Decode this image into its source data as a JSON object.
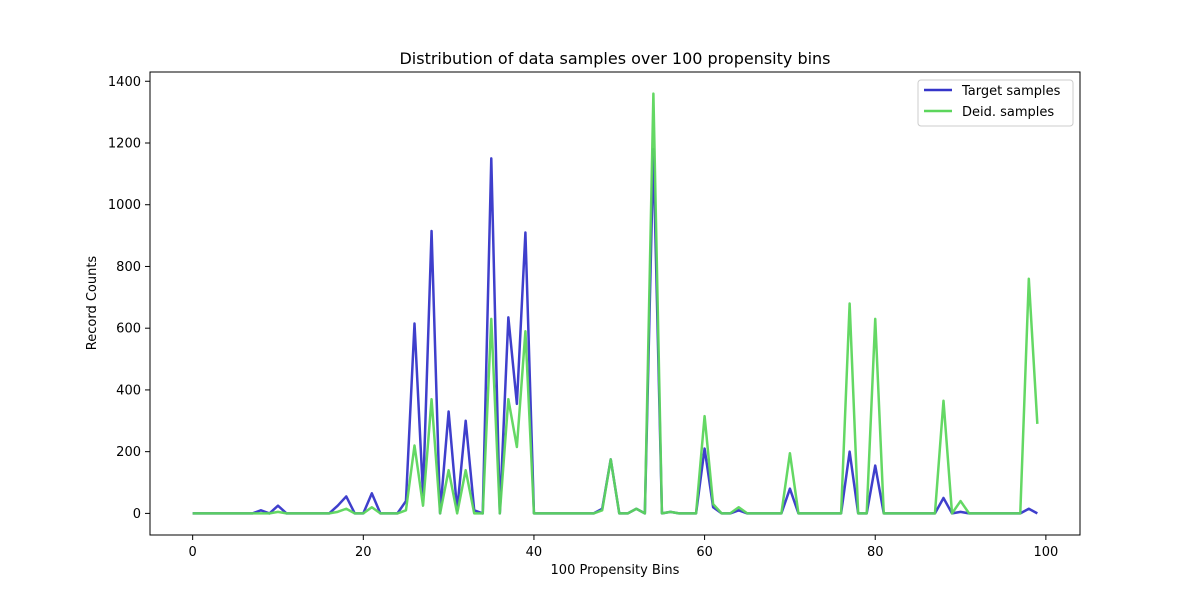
{
  "chart_data": {
    "type": "line",
    "title": "Distribution of data samples over 100 propensity bins",
    "xlabel": "100 Propensity Bins",
    "ylabel": "Record Counts",
    "xlim": [
      -5,
      104
    ],
    "ylim": [
      -70,
      1430
    ],
    "xticks": [
      0,
      20,
      40,
      60,
      80,
      100
    ],
    "yticks": [
      0,
      200,
      400,
      600,
      800,
      1000,
      1200,
      1400
    ],
    "grid": false,
    "legend_position": "top-right",
    "series": [
      {
        "name": "Target samples",
        "color": "#3535c9",
        "values": [
          0,
          0,
          0,
          0,
          0,
          0,
          0,
          0,
          10,
          0,
          25,
          0,
          0,
          0,
          0,
          0,
          0,
          25,
          55,
          0,
          0,
          65,
          0,
          0,
          0,
          40,
          615,
          60,
          915,
          0,
          330,
          10,
          300,
          10,
          0,
          1150,
          0,
          635,
          355,
          910,
          0,
          0,
          0,
          0,
          0,
          0,
          0,
          0,
          15,
          175,
          0,
          0,
          15,
          0,
          1180,
          0,
          5,
          0,
          0,
          0,
          210,
          20,
          0,
          0,
          10,
          0,
          0,
          0,
          0,
          0,
          80,
          0,
          0,
          0,
          0,
          0,
          0,
          200,
          0,
          0,
          155,
          0,
          0,
          0,
          0,
          0,
          0,
          0,
          50,
          0,
          5,
          0,
          0,
          0,
          0,
          0,
          0,
          0,
          15,
          0
        ]
      },
      {
        "name": "Deid. samples",
        "color": "#5cd65c",
        "values": [
          0,
          0,
          0,
          0,
          0,
          0,
          0,
          0,
          0,
          0,
          5,
          0,
          0,
          0,
          0,
          0,
          0,
          5,
          15,
          0,
          0,
          20,
          0,
          0,
          0,
          10,
          220,
          25,
          370,
          0,
          140,
          0,
          140,
          0,
          0,
          630,
          0,
          370,
          215,
          590,
          0,
          0,
          0,
          0,
          0,
          0,
          0,
          0,
          10,
          175,
          0,
          0,
          15,
          0,
          1360,
          0,
          5,
          0,
          0,
          0,
          315,
          30,
          0,
          0,
          20,
          0,
          0,
          0,
          0,
          0,
          195,
          0,
          0,
          0,
          0,
          0,
          0,
          680,
          0,
          0,
          630,
          0,
          0,
          0,
          0,
          0,
          0,
          0,
          365,
          0,
          40,
          0,
          0,
          0,
          0,
          0,
          0,
          0,
          760,
          290
        ]
      }
    ]
  }
}
